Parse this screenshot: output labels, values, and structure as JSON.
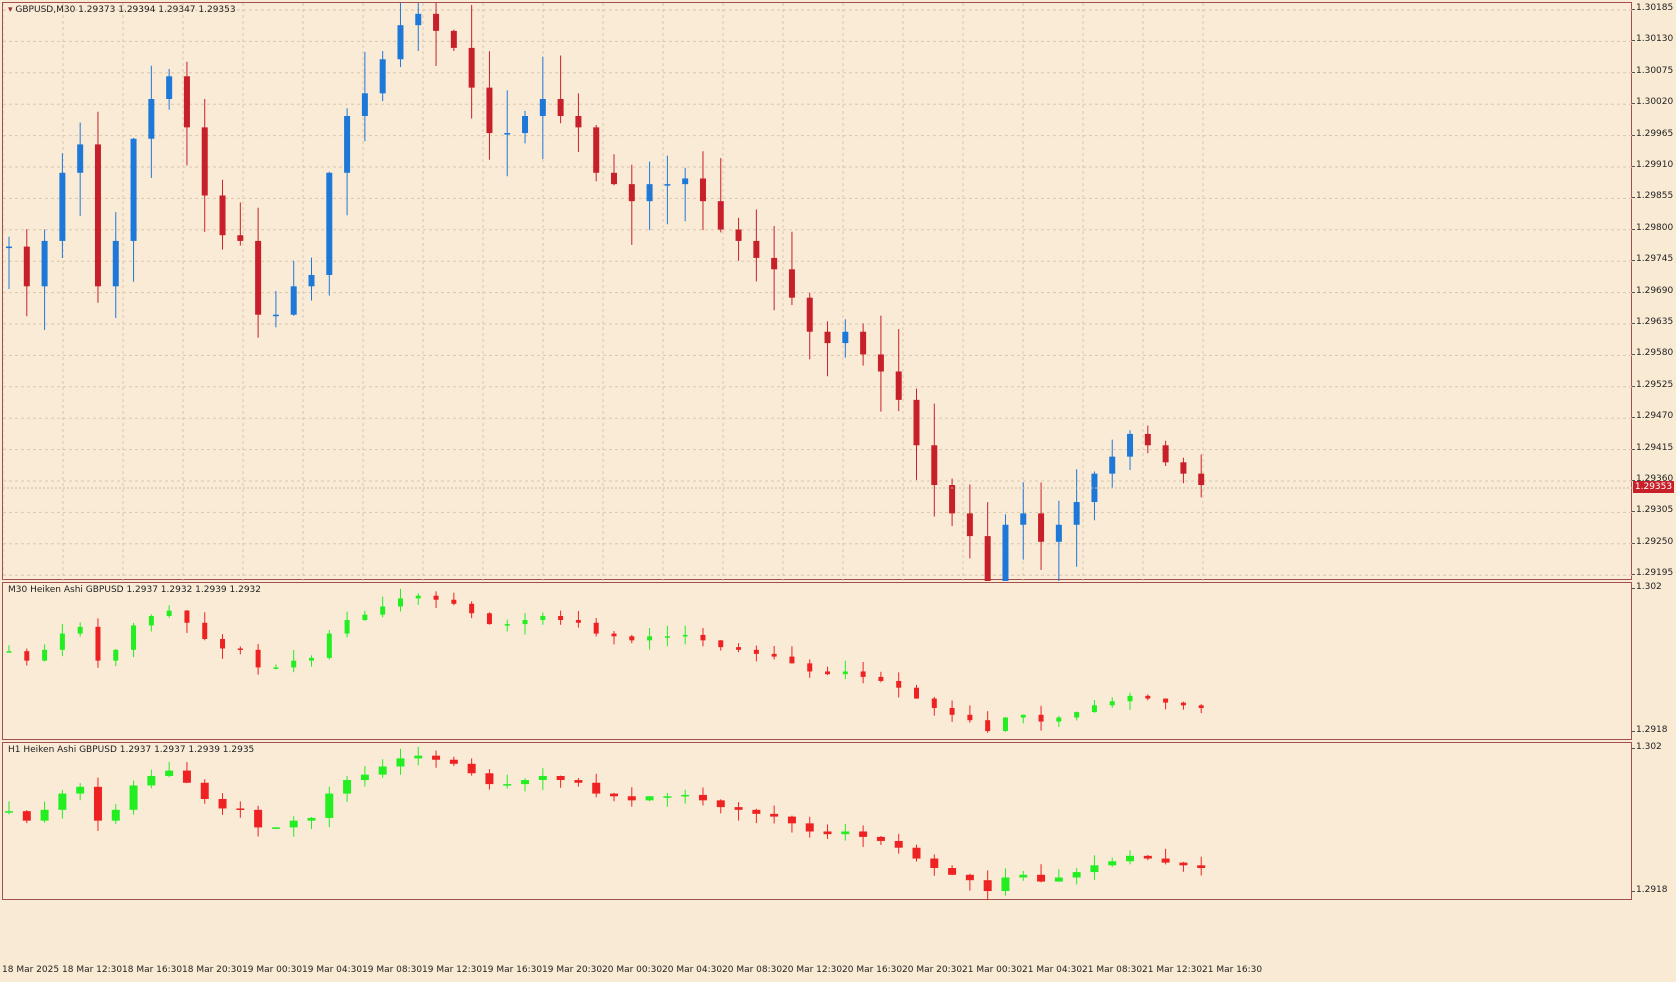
{
  "main_chart": {
    "title": "GBPUSD,M30  1.29373 1.29394 1.29347 1.29353",
    "current_price": "1.29353",
    "price_ticks": [
      "1.30185",
      "1.30130",
      "1.30075",
      "1.30020",
      "1.29965",
      "1.29910",
      "1.29855",
      "1.29800",
      "1.29745",
      "1.29690",
      "1.29635",
      "1.29580",
      "1.29525",
      "1.29470",
      "1.29415",
      "1.29360",
      "1.29305",
      "1.29250",
      "1.29195"
    ]
  },
  "m30_pane": {
    "title": "M30 Heiken Ashi GBPUSD 1.2937 1.2932 1.2939 1.2932",
    "top_tick": "1.302",
    "bottom_tick": "1.2918"
  },
  "h1_pane": {
    "title": "H1 Heiken Ashi GBPUSD 1.2937 1.2937 1.2939 1.2935",
    "top_tick": "1.302",
    "bottom_tick": "1.2918"
  },
  "time_labels": [
    "18 Mar 2025",
    "18 Mar 12:30",
    "18 Mar 16:30",
    "18 Mar 20:30",
    "19 Mar 00:30",
    "19 Mar 04:30",
    "19 Mar 08:30",
    "19 Mar 12:30",
    "19 Mar 16:30",
    "19 Mar 20:30",
    "20 Mar 00:30",
    "20 Mar 04:30",
    "20 Mar 08:30",
    "20 Mar 12:30",
    "20 Mar 16:30",
    "20 Mar 20:30",
    "21 Mar 00:30",
    "21 Mar 04:30",
    "21 Mar 08:30",
    "21 Mar 12:30",
    "21 Mar 16:30"
  ],
  "colors": {
    "bull_main": "#1e78d8",
    "bear_main": "#c8202a",
    "bull_ha": "#22ee22",
    "bear_ha": "#ee2222",
    "background": "#faebd7"
  },
  "chart_data": {
    "type": "candlestick",
    "closes": [
      1.2977,
      1.297,
      1.2978,
      1.299,
      1.2995,
      1.297,
      1.2978,
      1.2996,
      1.3003,
      1.3007,
      1.2998,
      1.2986,
      1.2979,
      1.2978,
      1.2965,
      1.2965,
      1.297,
      1.2972,
      1.299,
      1.3,
      1.3004,
      1.301,
      1.3016,
      1.3018,
      1.3015,
      1.3012,
      1.3005,
      1.2997,
      1.2997,
      1.3,
      1.3003,
      1.3,
      1.2998,
      1.299,
      1.2988,
      1.2985,
      1.2988,
      1.2988,
      1.2989,
      1.2985,
      1.298,
      1.2978,
      1.2975,
      1.2973,
      1.2968,
      1.2962,
      1.296,
      1.2962,
      1.2958,
      1.2955,
      1.295,
      1.2942,
      1.2935,
      1.293,
      1.2926,
      1.2918,
      1.2928,
      1.293,
      1.2925,
      1.2928,
      1.2932,
      1.2937,
      1.294,
      1.2944,
      1.2942,
      1.2939,
      1.2937,
      1.2935
    ]
  }
}
